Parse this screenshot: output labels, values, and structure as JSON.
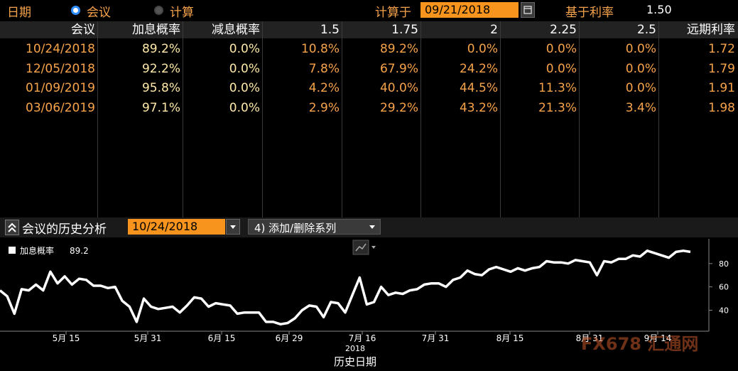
{
  "topbar": {
    "date_label": "日期",
    "radio_meeting": "会议",
    "radio_calc": "计算",
    "calc_on_label": "计算于",
    "calc_date": "09/21/2018",
    "base_rate_label": "基于利率",
    "base_rate_value": "1.50"
  },
  "table": {
    "headers": [
      "会议",
      "加息概率",
      "减息概率",
      "1.5",
      "1.75",
      "2",
      "2.25",
      "2.5",
      "远期利率"
    ],
    "rows": [
      [
        "10/24/2018",
        "89.2%",
        "0.0%",
        "10.8%",
        "89.2%",
        "0.0%",
        "0.0%",
        "0.0%",
        "1.72"
      ],
      [
        "12/05/2018",
        "92.2%",
        "0.0%",
        "7.8%",
        "67.9%",
        "24.2%",
        "0.0%",
        "0.0%",
        "1.79"
      ],
      [
        "01/09/2019",
        "95.8%",
        "0.0%",
        "4.2%",
        "40.0%",
        "44.5%",
        "11.3%",
        "0.0%",
        "1.91"
      ],
      [
        "03/06/2019",
        "97.1%",
        "0.0%",
        "2.9%",
        "29.2%",
        "43.2%",
        "21.3%",
        "3.4%",
        "1.98"
      ]
    ]
  },
  "history": {
    "title": "会议的历史分析",
    "meeting_date": "10/24/2018",
    "add_remove_label": "4) 添加/删除系列"
  },
  "colors": {
    "orange": "#f7a34a",
    "yellow": "#ffe9a8",
    "accent_blue": "#2f8cff",
    "date_bg": "#f7941d"
  },
  "chart_data": {
    "type": "line",
    "legend": "加息概率",
    "legend_value": "89.2",
    "xlabel": "历史日期",
    "year_label": "2018",
    "x_ticks": [
      "5月 15",
      "5月 31",
      "6月 15",
      "6月 29",
      "7月 16",
      "7月 31",
      "8月 15",
      "8月 31",
      "9月 14"
    ],
    "y_ticks": [
      "80",
      "60",
      "40"
    ],
    "ylim": [
      22,
      100
    ],
    "values": [
      57,
      52,
      37,
      58,
      57,
      62,
      57,
      73,
      63,
      69,
      62,
      67,
      66,
      61,
      61,
      59,
      60,
      48,
      43,
      30,
      50,
      43,
      41,
      42,
      43,
      38,
      44,
      51,
      50,
      43,
      46,
      45,
      44,
      37,
      38,
      38,
      38,
      30,
      30,
      28,
      29,
      33,
      40,
      44,
      43,
      34,
      47,
      46,
      38,
      53,
      68,
      45,
      47,
      60,
      53,
      55,
      54,
      57,
      58,
      62,
      63,
      63,
      60,
      66,
      68,
      74,
      71,
      70,
      75,
      77,
      75,
      73,
      76,
      74,
      76,
      77,
      82,
      81,
      81,
      80,
      83,
      82,
      81,
      70,
      82,
      81,
      84,
      84,
      87,
      86,
      91,
      89,
      87,
      85,
      90,
      91,
      90
    ]
  },
  "watermark": "FX678 汇通网"
}
